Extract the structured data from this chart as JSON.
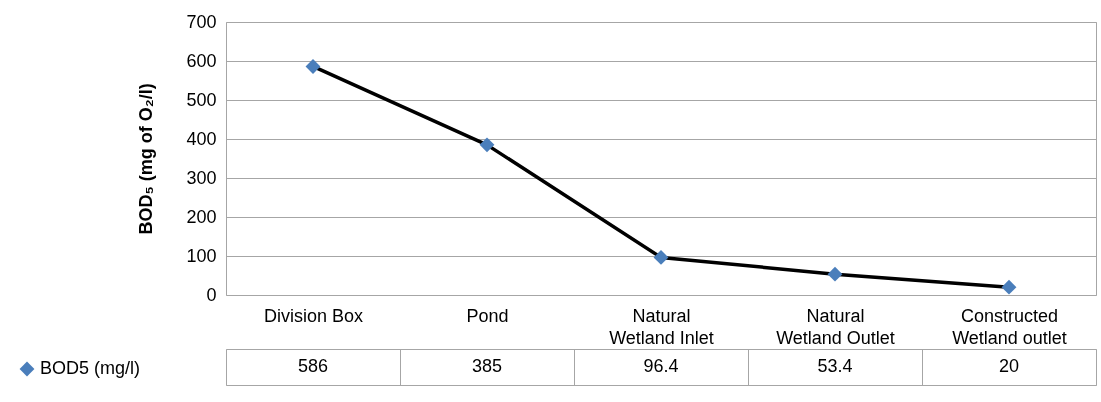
{
  "chart_data": {
    "type": "line",
    "ylabel": "BOD₅ (mg of O₂/l)",
    "categories": [
      "Division Box",
      "Pond",
      "Natural Wetland Inlet",
      "Natural Wetland Outlet",
      "Constructed Wetland outlet"
    ],
    "series": [
      {
        "name": "BOD5 (mg/l)",
        "color": "#4a7ebb",
        "values": [
          586,
          385,
          96.4,
          53.4,
          20
        ]
      }
    ],
    "ylim": [
      0,
      700
    ],
    "yticks": [
      0,
      100,
      200,
      300,
      400,
      500,
      600,
      700
    ],
    "grid": "y",
    "marker": "diamond",
    "line_style": "solid",
    "data_labels": true,
    "legend": "bottom left"
  }
}
